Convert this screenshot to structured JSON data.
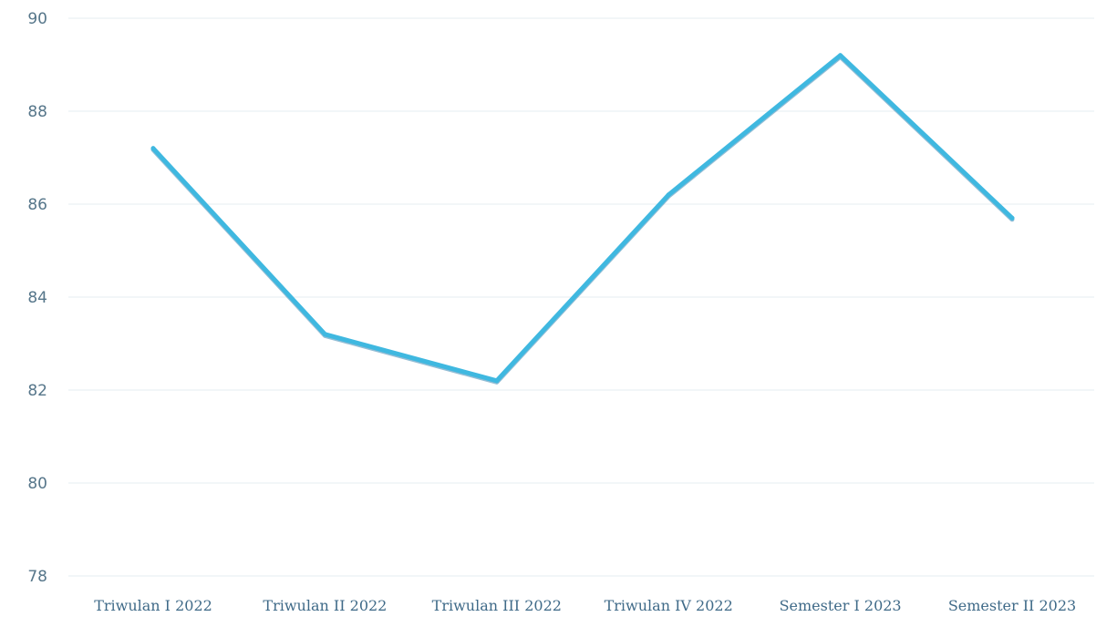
{
  "chart_data": {
    "type": "line",
    "title": "",
    "xlabel": "",
    "ylabel": "",
    "categories": [
      "Triwulan I 2022",
      "Triwulan II 2022",
      "Triwulan III 2022",
      "Triwulan IV 2022",
      "Semester I 2023",
      "Semester II 2023"
    ],
    "series": [
      {
        "values": [
          87.2,
          83.2,
          82.2,
          86.2,
          89.2,
          85.7
        ],
        "color": "#3fb8e0"
      }
    ],
    "ylim": [
      78,
      90
    ],
    "yticks": [
      78,
      80,
      82,
      84,
      86,
      88,
      90
    ],
    "grid": true,
    "legend": "none"
  }
}
